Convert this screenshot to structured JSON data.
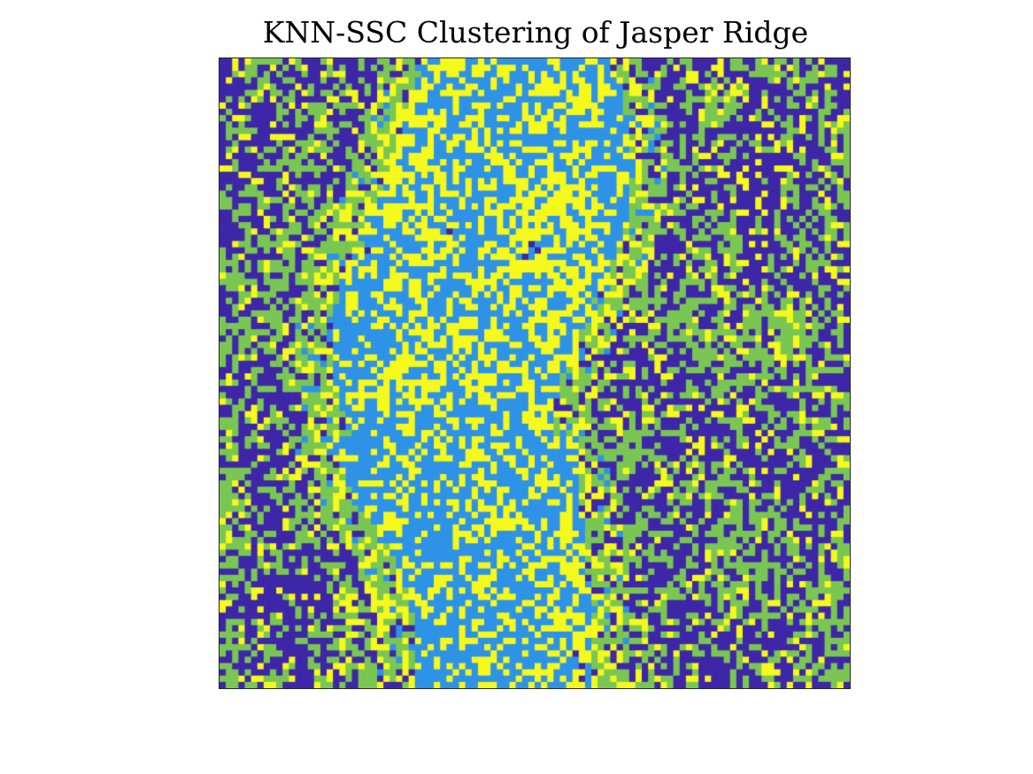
{
  "chart_data": {
    "type": "heatmap",
    "title": "KNN-SSC Clustering of Jasper Ridge",
    "xlabel": "",
    "ylabel": "",
    "grid": false,
    "legend": "none",
    "shape": [
      100,
      100
    ],
    "clusters": [
      1,
      2,
      3,
      4
    ],
    "colormap": {
      "1": "#3e26a8",
      "2": "#2e93e6",
      "3": "#7ac653",
      "4": "#f5f91c"
    },
    "region_notes": [
      "cluster 2 (light blue) concentrated along the central river channel",
      "cluster 4 (yellow) mixed throughout the river corridor",
      "clusters 1 and 3 (dark blue, green) dominate the left and right land areas"
    ]
  }
}
